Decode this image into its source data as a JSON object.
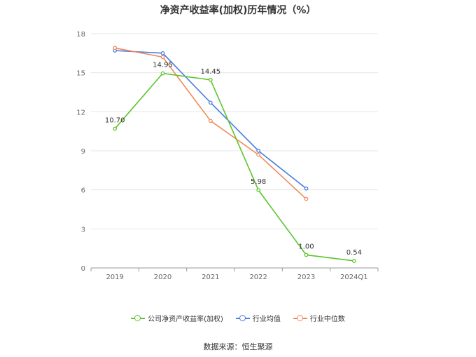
{
  "chart_data": {
    "type": "line",
    "title": "净资产收益率(加权)历年情况（%）",
    "categories": [
      "2019",
      "2020",
      "2021",
      "2022",
      "2023",
      "2024Q1"
    ],
    "ylim": [
      0,
      18
    ],
    "yticks": [
      0,
      3,
      6,
      9,
      12,
      15,
      18
    ],
    "grid": true,
    "legend_position": "bottom",
    "series": [
      {
        "name": "公司净资产收益率(加权)",
        "color": "#5ec42f",
        "values": [
          10.7,
          14.95,
          14.45,
          5.98,
          1.0,
          0.54
        ],
        "labels": [
          "10.70",
          "14.95",
          "14.45",
          "5.98",
          "1.00",
          "0.54"
        ]
      },
      {
        "name": "行业均值",
        "color": "#4a7de0",
        "values": [
          16.7,
          16.5,
          12.7,
          9.0,
          6.1,
          null
        ]
      },
      {
        "name": "行业中位数",
        "color": "#f08a5d",
        "values": [
          16.9,
          16.2,
          11.3,
          8.7,
          5.3,
          null
        ]
      }
    ]
  },
  "source": "数据来源：恒生聚源"
}
